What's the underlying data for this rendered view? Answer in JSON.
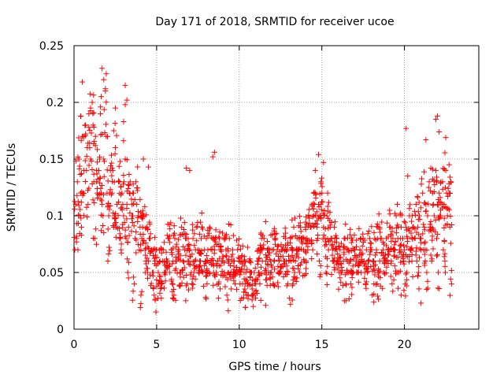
{
  "chart_data": {
    "type": "scatter",
    "title": "Day 171 of 2018, SRMTID for receiver ucoe",
    "xlabel": "GPS time / hours",
    "ylabel": "SRMTID / TECUs",
    "xlim": [
      0,
      24.5
    ],
    "ylim": [
      0,
      0.25
    ],
    "xticks": [
      0,
      5,
      10,
      15,
      20
    ],
    "xtick_labels": [
      "0",
      "5",
      "10",
      "15",
      "20"
    ],
    "yticks": [
      0,
      0.05,
      0.1,
      0.15,
      0.2,
      0.25
    ],
    "ytick_labels": [
      "0",
      "0.05",
      "0.1",
      "0.15",
      "0.2",
      "0.25"
    ],
    "grid": true,
    "marker": "+",
    "color": "#ff0000",
    "series": [
      {
        "name": "SRMTID",
        "x": [
          0.1,
          0.2,
          0.3,
          0.4,
          0.5,
          0.6,
          0.7,
          0.8,
          0.9,
          1.0,
          1.1,
          1.2,
          1.3,
          1.4,
          1.5,
          1.6,
          1.7,
          1.8,
          1.9,
          2.0,
          2.1,
          2.2,
          2.3,
          2.4,
          2.5,
          2.6,
          2.7,
          2.8,
          2.9,
          3.0,
          3.1,
          3.2,
          3.3,
          3.4,
          3.5,
          3.6,
          3.7,
          3.8,
          3.9,
          4.0,
          4.1,
          4.2,
          4.3,
          4.4,
          4.5,
          4.6,
          4.7,
          4.8,
          4.9,
          5.0,
          5.1,
          5.2,
          5.3,
          5.4,
          5.5,
          5.6,
          5.7,
          5.8,
          5.9,
          6.0,
          6.1,
          6.2,
          6.3,
          6.4,
          6.5,
          6.6,
          6.7,
          6.8,
          6.9,
          7.0,
          7.1,
          7.2,
          7.3,
          7.4,
          7.5,
          7.6,
          7.7,
          7.8,
          7.9,
          8.0,
          8.1,
          8.2,
          8.3,
          8.4,
          8.5,
          8.6,
          8.7,
          8.8,
          8.9,
          9.0,
          9.1,
          9.2,
          9.3,
          9.4,
          9.5,
          9.6,
          9.7,
          9.8,
          9.9,
          10.0,
          10.1,
          10.2,
          10.3,
          10.4,
          10.5,
          10.6,
          10.7,
          10.8,
          10.9,
          11.0,
          11.1,
          11.2,
          11.3,
          11.4,
          11.5,
          11.6,
          11.7,
          11.8,
          11.9,
          12.0,
          12.1,
          12.2,
          12.3,
          12.4,
          12.5,
          12.6,
          12.7,
          12.8,
          12.9,
          13.0,
          13.1,
          13.2,
          13.3,
          13.4,
          13.5,
          13.6,
          13.7,
          13.8,
          13.9,
          14.0,
          14.1,
          14.2,
          14.3,
          14.4,
          14.5,
          14.6,
          14.7,
          14.8,
          14.9,
          15.0,
          15.1,
          15.2,
          15.3,
          15.4,
          15.5,
          15.6,
          15.7,
          15.8,
          15.9,
          16.0,
          16.1,
          16.2,
          16.3,
          16.4,
          16.5,
          16.6,
          16.7,
          16.8,
          16.9,
          17.0,
          17.1,
          17.2,
          17.3,
          17.4,
          17.5,
          17.6,
          17.7,
          17.8,
          17.9,
          18.0,
          18.1,
          18.2,
          18.3,
          18.4,
          18.5,
          18.6,
          18.7,
          18.8,
          18.9,
          19.0,
          19.1,
          19.2,
          19.3,
          19.4,
          19.5,
          19.6,
          19.7,
          19.8,
          19.9,
          20.0,
          20.1,
          20.2,
          20.3,
          20.4,
          20.5,
          20.6,
          20.7,
          20.8,
          20.9,
          21.0,
          21.1,
          21.2,
          21.3,
          21.4,
          21.5,
          21.6,
          21.7,
          21.8,
          21.9,
          22.0,
          22.1,
          22.2,
          22.3,
          22.4,
          22.5,
          22.6,
          22.7,
          22.8,
          0.15,
          0.35,
          0.55,
          0.75,
          0.95,
          1.15,
          1.35,
          1.55,
          1.75,
          1.95,
          2.15,
          2.35,
          2.55,
          2.75,
          2.95,
          3.15,
          3.35,
          3.55,
          3.75,
          3.95,
          4.15,
          4.35,
          4.55,
          4.75,
          4.95,
          5.15,
          5.35,
          5.55,
          5.75,
          5.95,
          6.15,
          6.35,
          6.55,
          6.75,
          6.95,
          7.15,
          7.35,
          7.55,
          7.75,
          7.95,
          8.15,
          8.35,
          8.55,
          8.75,
          8.95,
          9.15,
          9.35,
          9.55,
          9.75,
          9.95,
          10.15,
          10.35,
          10.55,
          10.75,
          10.95,
          11.15,
          11.35,
          11.55,
          11.75,
          11.95,
          12.15,
          12.35,
          12.55,
          12.75,
          12.95,
          13.15,
          13.35,
          13.55,
          13.75,
          13.95,
          14.15,
          14.35,
          14.55,
          14.75,
          14.95,
          15.15,
          15.35,
          15.55,
          15.75,
          15.95,
          16.15,
          16.35,
          16.55,
          16.75,
          16.95,
          17.15,
          17.35,
          17.55,
          17.75,
          17.95,
          18.15,
          18.35,
          18.55,
          18.75,
          18.95,
          19.15,
          19.35,
          19.55,
          19.75,
          19.95,
          20.15,
          20.35,
          20.55,
          20.75,
          20.95,
          21.15,
          21.35,
          21.55,
          21.75,
          21.95,
          22.15,
          22.35,
          22.55,
          22.75,
          0.05,
          0.45,
          0.85,
          1.25,
          1.65,
          2.05,
          2.45,
          2.85,
          3.25,
          3.65,
          4.05,
          4.45,
          4.85,
          5.25,
          5.65,
          6.05,
          6.45,
          6.85,
          7.25,
          7.65,
          8.05,
          8.45,
          8.85,
          9.25,
          9.65,
          10.05,
          10.45,
          10.85,
          11.25,
          11.65,
          12.05,
          12.45,
          12.85,
          13.25,
          13.65,
          14.05,
          14.45,
          14.85,
          15.25,
          15.65,
          16.05,
          16.45,
          16.85,
          17.25,
          17.65,
          18.05,
          18.45,
          18.85,
          19.25,
          19.65,
          20.05,
          20.45,
          20.85,
          21.25,
          21.65,
          22.05,
          22.45,
          22.85
        ],
        "y": [
          0.11,
          0.13,
          0.15,
          0.12,
          0.17,
          0.14,
          0.18,
          0.16,
          0.19,
          0.15,
          0.2,
          0.13,
          0.17,
          0.12,
          0.14,
          0.19,
          0.11,
          0.15,
          0.21,
          0.12,
          0.1,
          0.14,
          0.12,
          0.09,
          0.16,
          0.11,
          0.13,
          0.08,
          0.12,
          0.1,
          0.15,
          0.11,
          0.09,
          0.13,
          0.1,
          0.12,
          0.08,
          0.11,
          0.1,
          0.09,
          0.08,
          0.1,
          0.07,
          0.09,
          0.06,
          0.08,
          0.07,
          0.05,
          0.06,
          0.07,
          0.05,
          0.06,
          0.04,
          0.07,
          0.05,
          0.06,
          0.08,
          0.05,
          0.07,
          0.06,
          0.08,
          0.06,
          0.07,
          0.05,
          0.09,
          0.06,
          0.07,
          0.08,
          0.06,
          0.07,
          0.05,
          0.08,
          0.06,
          0.09,
          0.07,
          0.06,
          0.08,
          0.05,
          0.07,
          0.06,
          0.07,
          0.09,
          0.06,
          0.08,
          0.07,
          0.05,
          0.06,
          0.08,
          0.07,
          0.06,
          0.05,
          0.07,
          0.06,
          0.08,
          0.05,
          0.07,
          0.06,
          0.05,
          0.07,
          0.06,
          0.05,
          0.04,
          0.06,
          0.05,
          0.04,
          0.06,
          0.05,
          0.03,
          0.05,
          0.04,
          0.06,
          0.05,
          0.07,
          0.06,
          0.08,
          0.06,
          0.07,
          0.05,
          0.06,
          0.07,
          0.06,
          0.08,
          0.07,
          0.06,
          0.05,
          0.07,
          0.06,
          0.08,
          0.07,
          0.06,
          0.08,
          0.07,
          0.09,
          0.06,
          0.08,
          0.07,
          0.09,
          0.08,
          0.07,
          0.09,
          0.08,
          0.1,
          0.09,
          0.11,
          0.1,
          0.12,
          0.09,
          0.11,
          0.1,
          0.12,
          0.09,
          0.08,
          0.1,
          0.07,
          0.09,
          0.08,
          0.06,
          0.07,
          0.08,
          0.06,
          0.07,
          0.05,
          0.06,
          0.08,
          0.05,
          0.07,
          0.06,
          0.08,
          0.05,
          0.07,
          0.06,
          0.05,
          0.07,
          0.06,
          0.08,
          0.05,
          0.07,
          0.06,
          0.08,
          0.07,
          0.06,
          0.08,
          0.07,
          0.09,
          0.06,
          0.08,
          0.07,
          0.06,
          0.08,
          0.07,
          0.09,
          0.06,
          0.08,
          0.07,
          0.1,
          0.08,
          0.07,
          0.09,
          0.08,
          0.07,
          0.09,
          0.08,
          0.1,
          0.07,
          0.09,
          0.08,
          0.11,
          0.09,
          0.1,
          0.08,
          0.12,
          0.09,
          0.11,
          0.1,
          0.13,
          0.09,
          0.12,
          0.1,
          0.14,
          0.11,
          0.12,
          0.1,
          0.13,
          0.11,
          0.14,
          0.1,
          0.12,
          0.13,
          0.08,
          0.1,
          0.12,
          0.14,
          0.16,
          0.18,
          0.13,
          0.15,
          0.1,
          0.17,
          0.12,
          0.14,
          0.09,
          0.13,
          0.11,
          0.08,
          0.12,
          0.1,
          0.13,
          0.07,
          0.09,
          0.06,
          0.08,
          0.05,
          0.07,
          0.04,
          0.06,
          0.05,
          0.08,
          0.04,
          0.06,
          0.07,
          0.05,
          0.08,
          0.06,
          0.04,
          0.07,
          0.05,
          0.09,
          0.06,
          0.05,
          0.07,
          0.08,
          0.04,
          0.06,
          0.08,
          0.05,
          0.06,
          0.04,
          0.05,
          0.06,
          0.04,
          0.03,
          0.05,
          0.04,
          0.06,
          0.08,
          0.05,
          0.07,
          0.05,
          0.08,
          0.05,
          0.07,
          0.06,
          0.04,
          0.06,
          0.05,
          0.07,
          0.08,
          0.06,
          0.07,
          0.09,
          0.11,
          0.08,
          0.13,
          0.1,
          0.12,
          0.08,
          0.09,
          0.06,
          0.05,
          0.08,
          0.06,
          0.04,
          0.07,
          0.05,
          0.08,
          0.06,
          0.05,
          0.07,
          0.06,
          0.04,
          0.08,
          0.05,
          0.06,
          0.09,
          0.07,
          0.05,
          0.08,
          0.06,
          0.05,
          0.07,
          0.09,
          0.06,
          0.08,
          0.07,
          0.05,
          0.09,
          0.11,
          0.08,
          0.1,
          0.07,
          0.12,
          0.09,
          0.07,
          0.09,
          0.11,
          0.08,
          0.12,
          0.06,
          0.1,
          0.07,
          0.05,
          0.04,
          0.03,
          0.05,
          0.03,
          0.04,
          0.06,
          0.03,
          0.05,
          0.04,
          0.05,
          0.06,
          0.04,
          0.05,
          0.07,
          0.03,
          0.05,
          0.04,
          0.03,
          0.02,
          0.04,
          0.05,
          0.04,
          0.05,
          0.06,
          0.04,
          0.05,
          0.06,
          0.07,
          0.06,
          0.05,
          0.06,
          0.05,
          0.04,
          0.05,
          0.06,
          0.04,
          0.03,
          0.05,
          0.06,
          0.04,
          0.05,
          0.04,
          0.06,
          0.05,
          0.07,
          0.06,
          0.05,
          0.06,
          0.04
        ]
      }
    ],
    "extra_points": {
      "x": [
        0.5,
        1.7,
        1.8,
        1.9,
        2.4,
        3.1,
        3.2,
        3.1,
        3.0,
        8.5,
        8.4,
        6.8,
        7.0,
        13.1,
        11.6,
        19.8,
        20.1,
        21.3,
        22.0,
        21.9,
        22.1,
        1.0,
        2.5,
        4.2,
        4.5,
        14.8,
        15.1,
        14.6,
        20.2,
        22.5,
        22.7,
        21.0
      ],
      "y": [
        0.218,
        0.23,
        0.22,
        0.212,
        0.175,
        0.215,
        0.202,
        0.198,
        0.183,
        0.156,
        0.152,
        0.142,
        0.14,
        0.022,
        0.021,
        0.03,
        0.177,
        0.167,
        0.188,
        0.185,
        0.174,
        0.195,
        0.195,
        0.15,
        0.143,
        0.154,
        0.147,
        0.14,
        0.135,
        0.169,
        0.145,
        0.023
      ]
    }
  }
}
